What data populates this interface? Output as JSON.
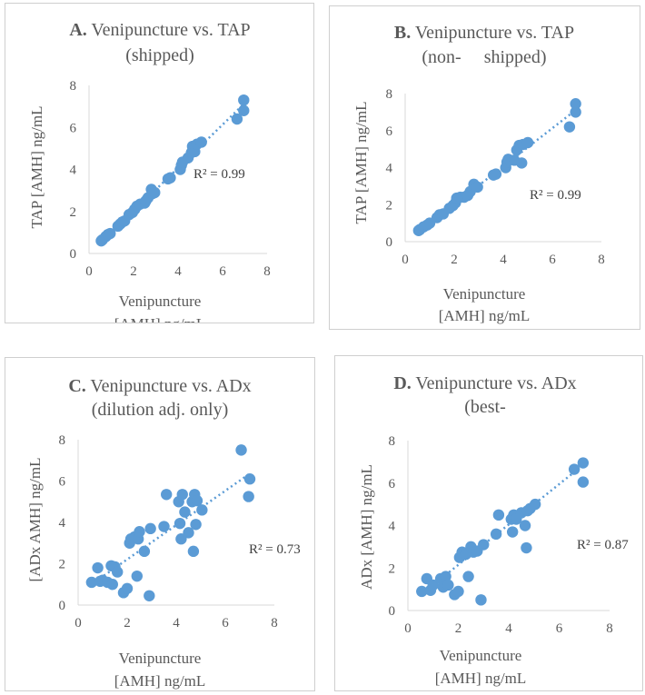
{
  "chart_data": [
    {
      "id": "A",
      "type": "scatter",
      "title_prefix": "A.",
      "title": [
        "Venipuncture vs. TAP",
        "(shipped)"
      ],
      "xlabel": [
        "Venipuncture",
        "[AMH] ng/mL"
      ],
      "ylabel": "TAP [AMH] ng/mL",
      "xlim": [
        0,
        8
      ],
      "ylim": [
        0,
        8
      ],
      "xticks": [
        0,
        2,
        4,
        6,
        8
      ],
      "yticks": [
        0,
        2,
        4,
        6,
        8
      ],
      "r2_label": "R² = 0.99",
      "trendline": {
        "slope": 1.03,
        "intercept": -0.05
      },
      "color": "#5b9bd5",
      "points": [
        [
          0.55,
          0.6
        ],
        [
          0.6,
          0.65
        ],
        [
          0.75,
          0.8
        ],
        [
          0.85,
          0.9
        ],
        [
          0.95,
          0.95
        ],
        [
          1.3,
          1.3
        ],
        [
          1.4,
          1.4
        ],
        [
          1.5,
          1.5
        ],
        [
          1.6,
          1.55
        ],
        [
          1.8,
          1.85
        ],
        [
          1.95,
          1.95
        ],
        [
          2.05,
          2.1
        ],
        [
          2.15,
          2.25
        ],
        [
          2.3,
          2.35
        ],
        [
          2.5,
          2.4
        ],
        [
          2.55,
          2.5
        ],
        [
          2.65,
          2.65
        ],
        [
          2.8,
          3.05
        ],
        [
          2.85,
          2.85
        ],
        [
          2.95,
          2.9
        ],
        [
          3.55,
          3.55
        ],
        [
          3.65,
          3.6
        ],
        [
          4.1,
          4.0
        ],
        [
          4.15,
          4.2
        ],
        [
          4.2,
          4.35
        ],
        [
          4.45,
          4.55
        ],
        [
          4.6,
          4.8
        ],
        [
          4.65,
          5.1
        ],
        [
          4.75,
          4.85
        ],
        [
          4.85,
          5.2
        ],
        [
          5.05,
          5.3
        ],
        [
          6.65,
          6.4
        ],
        [
          6.95,
          6.8
        ],
        [
          6.95,
          7.3
        ]
      ]
    },
    {
      "id": "B",
      "type": "scatter",
      "title_prefix": "B.",
      "title": [
        "Venipuncture vs. TAP",
        "(non-     shipped)"
      ],
      "xlabel": [
        "Venipuncture",
        "[AMH] ng/mL"
      ],
      "ylabel": "TAP [AMH] ng/mL",
      "xlim": [
        0,
        8
      ],
      "ylim": [
        0,
        8
      ],
      "xticks": [
        0,
        2,
        4,
        6,
        8
      ],
      "yticks": [
        0,
        2,
        4,
        6,
        8
      ],
      "r2_label": "R² = 0.99",
      "trendline": {
        "slope": 1.03,
        "intercept": -0.05
      },
      "color": "#5b9bd5",
      "points": [
        [
          0.55,
          0.6
        ],
        [
          0.6,
          0.65
        ],
        [
          0.75,
          0.8
        ],
        [
          0.9,
          0.9
        ],
        [
          1.0,
          1.0
        ],
        [
          1.3,
          1.3
        ],
        [
          1.4,
          1.45
        ],
        [
          1.55,
          1.5
        ],
        [
          1.8,
          1.8
        ],
        [
          1.95,
          1.95
        ],
        [
          2.05,
          2.1
        ],
        [
          2.1,
          2.35
        ],
        [
          2.25,
          2.4
        ],
        [
          2.4,
          2.4
        ],
        [
          2.55,
          2.5
        ],
        [
          2.65,
          2.7
        ],
        [
          2.8,
          3.1
        ],
        [
          2.95,
          2.95
        ],
        [
          3.6,
          3.6
        ],
        [
          3.7,
          3.65
        ],
        [
          4.1,
          4.0
        ],
        [
          4.15,
          4.3
        ],
        [
          4.2,
          4.45
        ],
        [
          4.45,
          4.4
        ],
        [
          4.55,
          4.95
        ],
        [
          4.65,
          5.2
        ],
        [
          4.75,
          4.25
        ],
        [
          4.8,
          5.25
        ],
        [
          5.0,
          5.35
        ],
        [
          6.7,
          6.2
        ],
        [
          6.95,
          7.0
        ],
        [
          6.95,
          7.45
        ]
      ]
    },
    {
      "id": "C",
      "type": "scatter",
      "title_prefix": "C.",
      "title": [
        "Venipuncture vs. ADx",
        "(dilution adj. only)"
      ],
      "xlabel": [
        "Venipuncture",
        "[AMH] ng/mL"
      ],
      "ylabel": "[ADx AMH] ng/mL",
      "xlim": [
        0,
        8
      ],
      "ylim": [
        0,
        8
      ],
      "xticks": [
        0,
        2,
        4,
        6,
        8
      ],
      "yticks": [
        0,
        2,
        4,
        6,
        8
      ],
      "r2_label": "R² = 0.73",
      "trendline": {
        "slope": 0.83,
        "intercept": 0.55
      },
      "color": "#5b9bd5",
      "points": [
        [
          0.55,
          1.1
        ],
        [
          0.8,
          1.8
        ],
        [
          0.9,
          1.15
        ],
        [
          1.0,
          1.2
        ],
        [
          1.2,
          1.1
        ],
        [
          1.35,
          1.9
        ],
        [
          1.4,
          1.0
        ],
        [
          1.5,
          1.85
        ],
        [
          1.6,
          1.6
        ],
        [
          1.85,
          0.6
        ],
        [
          2.0,
          0.8
        ],
        [
          2.1,
          3.0
        ],
        [
          2.15,
          3.2
        ],
        [
          2.3,
          3.3
        ],
        [
          2.4,
          1.4
        ],
        [
          2.45,
          3.2
        ],
        [
          2.5,
          3.55
        ],
        [
          2.7,
          2.6
        ],
        [
          2.9,
          0.45
        ],
        [
          2.95,
          3.7
        ],
        [
          3.5,
          3.8
        ],
        [
          3.6,
          5.35
        ],
        [
          4.1,
          5.0
        ],
        [
          4.15,
          3.95
        ],
        [
          4.2,
          3.2
        ],
        [
          4.25,
          5.35
        ],
        [
          4.35,
          4.5
        ],
        [
          4.5,
          3.5
        ],
        [
          4.65,
          5.0
        ],
        [
          4.7,
          2.6
        ],
        [
          4.75,
          5.35
        ],
        [
          4.8,
          3.9
        ],
        [
          4.85,
          5.05
        ],
        [
          5.05,
          4.6
        ],
        [
          6.65,
          7.5
        ],
        [
          6.95,
          5.25
        ],
        [
          7.0,
          6.1
        ]
      ]
    },
    {
      "id": "D",
      "type": "scatter",
      "title_prefix": "D.",
      "title": [
        "Venipuncture vs. ADx",
        "(best-"
      ],
      "xlabel": [
        "Venipuncture",
        "[AMH] ng/mL"
      ],
      "ylabel": "ADx [AMH] ng/mL",
      "xlim": [
        0,
        8
      ],
      "ylim": [
        0,
        8
      ],
      "xticks": [
        0,
        2,
        4,
        6,
        8
      ],
      "yticks": [
        0,
        2,
        4,
        6,
        8
      ],
      "r2_label": "R² = 0.87",
      "trendline": {
        "slope": 0.95,
        "intercept": 0.25
      },
      "color": "#5b9bd5",
      "points": [
        [
          0.55,
          0.9
        ],
        [
          0.75,
          1.5
        ],
        [
          0.9,
          0.95
        ],
        [
          1.0,
          1.2
        ],
        [
          1.3,
          1.5
        ],
        [
          1.4,
          1.1
        ],
        [
          1.5,
          1.6
        ],
        [
          1.6,
          1.2
        ],
        [
          1.85,
          0.75
        ],
        [
          2.0,
          0.9
        ],
        [
          2.05,
          2.5
        ],
        [
          2.15,
          2.75
        ],
        [
          2.3,
          2.65
        ],
        [
          2.4,
          1.6
        ],
        [
          2.5,
          3.0
        ],
        [
          2.6,
          2.75
        ],
        [
          2.75,
          2.8
        ],
        [
          2.9,
          0.5
        ],
        [
          3.0,
          3.1
        ],
        [
          3.5,
          3.6
        ],
        [
          3.6,
          4.5
        ],
        [
          4.1,
          4.3
        ],
        [
          4.15,
          3.7
        ],
        [
          4.2,
          4.5
        ],
        [
          4.3,
          4.3
        ],
        [
          4.5,
          4.6
        ],
        [
          4.65,
          4.0
        ],
        [
          4.7,
          2.95
        ],
        [
          4.75,
          4.7
        ],
        [
          4.85,
          4.8
        ],
        [
          5.05,
          5.0
        ],
        [
          6.6,
          6.65
        ],
        [
          6.95,
          6.05
        ],
        [
          6.95,
          6.95
        ]
      ]
    }
  ]
}
